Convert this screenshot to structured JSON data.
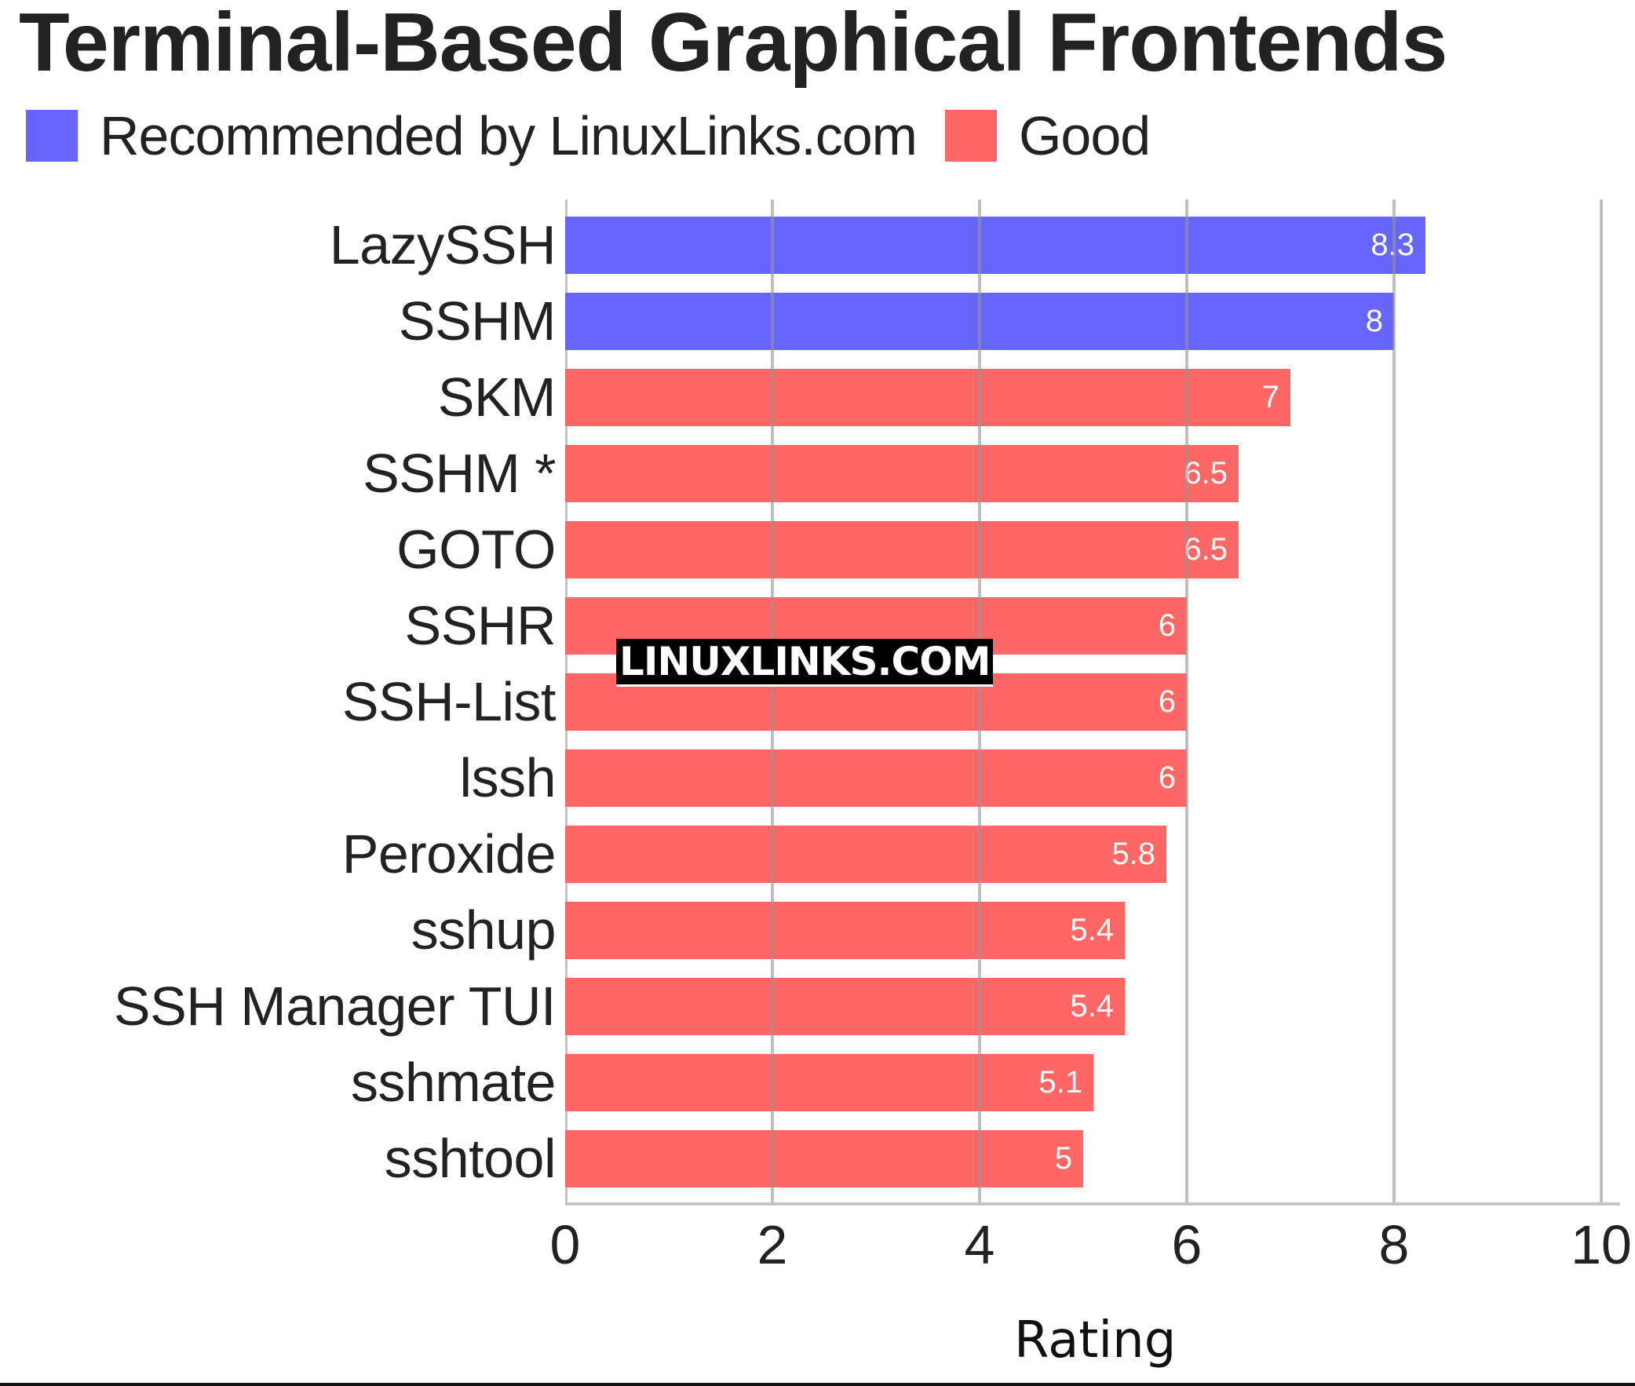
{
  "header": {
    "title": "Terminal-Based Graphical Frontends"
  },
  "legend": [
    {
      "label": "Recommended by LinuxLinks.com",
      "color": "#6666ff"
    },
    {
      "label": "Good",
      "color": "#ff6666"
    }
  ],
  "watermark": "LINUXLINKS.COM",
  "axis": {
    "xlabel": "Rating",
    "ticks": [
      "0",
      "2",
      "4",
      "6",
      "8",
      "10"
    ]
  },
  "chart_data": {
    "type": "bar",
    "orientation": "horizontal",
    "title": "Terminal-Based Graphical Frontends",
    "xlabel": "Rating",
    "ylabel": "",
    "xlim": [
      0,
      10
    ],
    "xticks": [
      0,
      2,
      4,
      6,
      8,
      10
    ],
    "grid": true,
    "legend_position": "top-left",
    "categories": [
      "LazySSH",
      "SSHM",
      "SKM",
      "SSHM *",
      "GOTO",
      "SSHR",
      "SSH-List",
      "lssh",
      "Peroxide",
      "sshup",
      "SSH Manager TUI",
      "sshmate",
      "sshtool"
    ],
    "values": [
      8.3,
      8,
      7,
      6.5,
      6.5,
      6,
      6,
      6,
      5.8,
      5.4,
      5.4,
      5.1,
      5
    ],
    "value_labels": [
      "8.3",
      "8",
      "7",
      "6.5",
      "6.5",
      "6",
      "6",
      "6",
      "5.8",
      "5.4",
      "5.4",
      "5.1",
      "5"
    ],
    "groups": [
      "Recommended by LinuxLinks.com",
      "Recommended by LinuxLinks.com",
      "Good",
      "Good",
      "Good",
      "Good",
      "Good",
      "Good",
      "Good",
      "Good",
      "Good",
      "Good",
      "Good"
    ],
    "series": [
      {
        "name": "Recommended by LinuxLinks.com",
        "color": "#6666ff",
        "categories": [
          "LazySSH",
          "SSHM"
        ],
        "values": [
          8.3,
          8
        ]
      },
      {
        "name": "Good",
        "color": "#ff6666",
        "categories": [
          "SKM",
          "SSHM *",
          "GOTO",
          "SSHR",
          "SSH-List",
          "lssh",
          "Peroxide",
          "sshup",
          "SSH Manager TUI",
          "sshmate",
          "sshtool"
        ],
        "values": [
          7,
          6.5,
          6.5,
          6,
          6,
          6,
          5.8,
          5.4,
          5.4,
          5.1,
          5
        ]
      }
    ],
    "colors": {
      "recommended": "#6666ff",
      "good": "#ff6666"
    }
  }
}
